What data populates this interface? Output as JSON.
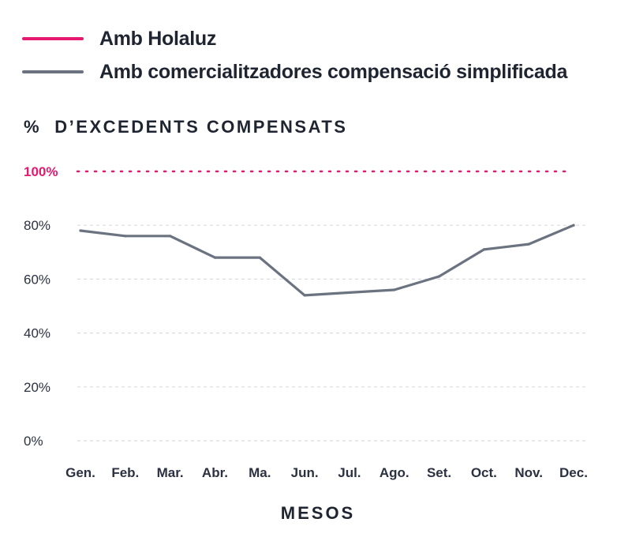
{
  "legend": [
    {
      "label": "Amb Holaluz",
      "color": "#e5196f"
    },
    {
      "label": "Amb comercialitzadores compensació simplificada",
      "color": "#6b7280"
    }
  ],
  "chart_data": {
    "type": "line",
    "title": "%  D’EXCEDENTS COMPENSATS",
    "xlabel": "MESOS",
    "ylabel": "",
    "categories": [
      "Gen.",
      "Feb.",
      "Mar.",
      "Abr.",
      "Ma.",
      "Jun.",
      "Jul.",
      "Ago.",
      "Set.",
      "Oct.",
      "Nov.",
      "Dec."
    ],
    "y_ticks": [
      "0%",
      "20%",
      "40%",
      "60%",
      "80%",
      "100%"
    ],
    "ylim": [
      0,
      100
    ],
    "grid": true,
    "legend_position": "top-left",
    "reference_line": {
      "value": 100,
      "label": "100%",
      "color": "#e5196f",
      "style": "dotted"
    },
    "series": [
      {
        "name": "Amb comercialitzadores compensació simplificada",
        "color": "#6b7280",
        "values": [
          78,
          76,
          76,
          68,
          68,
          54,
          55,
          56,
          61,
          71,
          73,
          80
        ]
      }
    ]
  }
}
